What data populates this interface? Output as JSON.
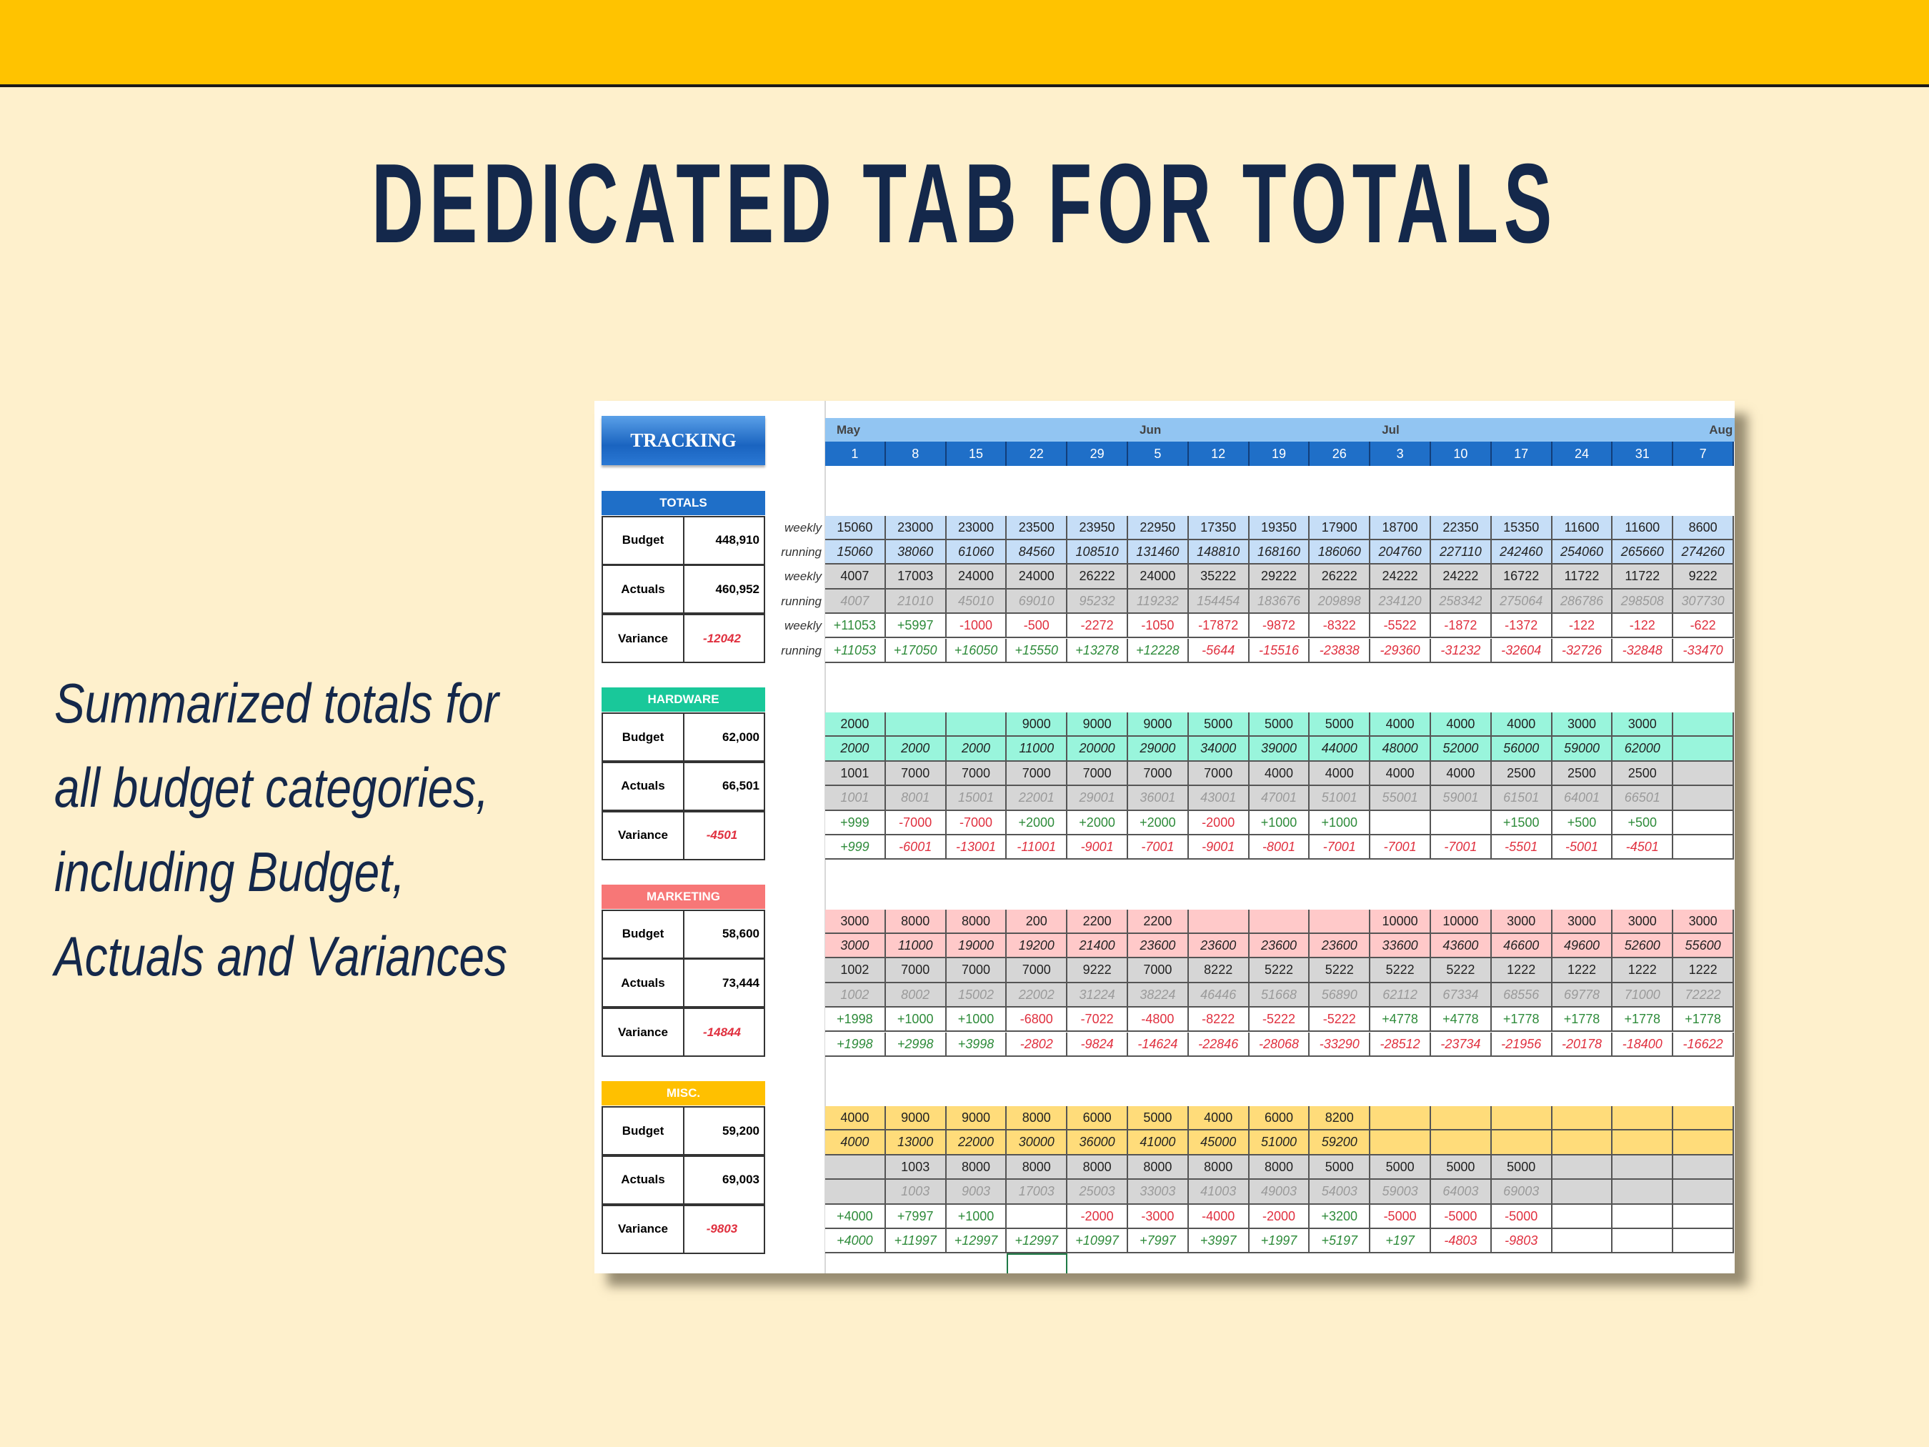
{
  "title": "DEDICATED TAB FOR TOTALS",
  "blurb": [
    "Summarized totals for",
    "all budget categories,",
    "including  Budget,",
    "Actuals and Variances"
  ],
  "sheet": {
    "tracking_button": "TRACKING",
    "months": [
      {
        "label": "May",
        "col": 0
      },
      {
        "label": "Jun",
        "col": 5
      },
      {
        "label": "Jul",
        "col": 9
      },
      {
        "label": "Aug",
        "col": 14
      }
    ],
    "days": [
      "1",
      "8",
      "15",
      "22",
      "29",
      "5",
      "12",
      "19",
      "26",
      "3",
      "10",
      "17",
      "24",
      "31",
      "7"
    ],
    "row_labels": [
      "weekly",
      "running",
      "weekly",
      "running",
      "weekly",
      "running"
    ],
    "summary_labels": {
      "budget": "Budget",
      "actuals": "Actuals",
      "variance": "Variance"
    },
    "colors": {
      "positive": "#2E8B3A",
      "negative": "#E0303F"
    },
    "sections": [
      {
        "name": "TOTALS",
        "header_color": "#1F6FC8",
        "budget_color": "#C6DEF7",
        "actual_color": "#D6D6D6",
        "budget": "448,910",
        "actuals": "460,952",
        "variance": "-12042",
        "rows": [
          [
            "15060",
            "23000",
            "23000",
            "23500",
            "23950",
            "22950",
            "17350",
            "19350",
            "17900",
            "18700",
            "22350",
            "15350",
            "11600",
            "11600",
            "8600"
          ],
          [
            "15060",
            "38060",
            "61060",
            "84560",
            "108510",
            "131460",
            "148810",
            "168160",
            "186060",
            "204760",
            "227110",
            "242460",
            "254060",
            "265660",
            "274260"
          ],
          [
            "4007",
            "17003",
            "24000",
            "24000",
            "26222",
            "24000",
            "35222",
            "29222",
            "26222",
            "24222",
            "24222",
            "16722",
            "11722",
            "11722",
            "9222"
          ],
          [
            "4007",
            "21010",
            "45010",
            "69010",
            "95232",
            "119232",
            "154454",
            "183676",
            "209898",
            "234120",
            "258342",
            "275064",
            "286786",
            "298508",
            "307730"
          ],
          [
            "+11053",
            "+5997",
            "-1000",
            "-500",
            "-2272",
            "-1050",
            "-17872",
            "-9872",
            "-8322",
            "-5522",
            "-1872",
            "-1372",
            "-122",
            "-122",
            "-622"
          ],
          [
            "+11053",
            "+17050",
            "+16050",
            "+15550",
            "+13278",
            "+12228",
            "-5644",
            "-15516",
            "-23838",
            "-29360",
            "-31232",
            "-32604",
            "-32726",
            "-32848",
            "-33470"
          ]
        ]
      },
      {
        "name": "HARDWARE",
        "header_color": "#19C89A",
        "budget_color": "#99F5DC",
        "actual_color": "#D6D6D6",
        "budget": "62,000",
        "actuals": "66,501",
        "variance": "-4501",
        "rows": [
          [
            "2000",
            "",
            "",
            "9000",
            "9000",
            "9000",
            "5000",
            "5000",
            "5000",
            "4000",
            "4000",
            "4000",
            "3000",
            "3000",
            ""
          ],
          [
            "2000",
            "2000",
            "2000",
            "11000",
            "20000",
            "29000",
            "34000",
            "39000",
            "44000",
            "48000",
            "52000",
            "56000",
            "59000",
            "62000",
            ""
          ],
          [
            "1001",
            "7000",
            "7000",
            "7000",
            "7000",
            "7000",
            "7000",
            "4000",
            "4000",
            "4000",
            "4000",
            "2500",
            "2500",
            "2500",
            ""
          ],
          [
            "1001",
            "8001",
            "15001",
            "22001",
            "29001",
            "36001",
            "43001",
            "47001",
            "51001",
            "55001",
            "59001",
            "61501",
            "64001",
            "66501",
            ""
          ],
          [
            "+999",
            "-7000",
            "-7000",
            "+2000",
            "+2000",
            "+2000",
            "-2000",
            "+1000",
            "+1000",
            "",
            "",
            "+1500",
            "+500",
            "+500",
            ""
          ],
          [
            "+999",
            "-6001",
            "-13001",
            "-11001",
            "-9001",
            "-7001",
            "-9001",
            "-8001",
            "-7001",
            "-7001",
            "-7001",
            "-5501",
            "-5001",
            "-4501",
            ""
          ]
        ]
      },
      {
        "name": "MARKETING",
        "header_color": "#F77777",
        "budget_color": "#FFC9C9",
        "actual_color": "#D6D6D6",
        "budget": "58,600",
        "actuals": "73,444",
        "variance": "-14844",
        "rows": [
          [
            "3000",
            "8000",
            "8000",
            "200",
            "2200",
            "2200",
            "",
            "",
            "",
            "10000",
            "10000",
            "3000",
            "3000",
            "3000",
            "3000"
          ],
          [
            "3000",
            "11000",
            "19000",
            "19200",
            "21400",
            "23600",
            "23600",
            "23600",
            "23600",
            "33600",
            "43600",
            "46600",
            "49600",
            "52600",
            "55600"
          ],
          [
            "1002",
            "7000",
            "7000",
            "7000",
            "9222",
            "7000",
            "8222",
            "5222",
            "5222",
            "5222",
            "5222",
            "1222",
            "1222",
            "1222",
            "1222"
          ],
          [
            "1002",
            "8002",
            "15002",
            "22002",
            "31224",
            "38224",
            "46446",
            "51668",
            "56890",
            "62112",
            "67334",
            "68556",
            "69778",
            "71000",
            "72222"
          ],
          [
            "+1998",
            "+1000",
            "+1000",
            "-6800",
            "-7022",
            "-4800",
            "-8222",
            "-5222",
            "-5222",
            "+4778",
            "+4778",
            "+1778",
            "+1778",
            "+1778",
            "+1778"
          ],
          [
            "+1998",
            "+2998",
            "+3998",
            "-2802",
            "-9824",
            "-14624",
            "-22846",
            "-28068",
            "-33290",
            "-28512",
            "-23734",
            "-21956",
            "-20178",
            "-18400",
            "-16622"
          ]
        ]
      },
      {
        "name": "MISC.",
        "header_color": "#FFC000",
        "budget_color": "#FFDC7A",
        "actual_color": "#D6D6D6",
        "budget": "59,200",
        "actuals": "69,003",
        "variance": "-9803",
        "rows": [
          [
            "4000",
            "9000",
            "9000",
            "8000",
            "6000",
            "5000",
            "4000",
            "6000",
            "8200",
            "",
            "",
            "",
            "",
            "",
            ""
          ],
          [
            "4000",
            "13000",
            "22000",
            "30000",
            "36000",
            "41000",
            "45000",
            "51000",
            "59200",
            "",
            "",
            "",
            "",
            "",
            ""
          ],
          [
            "",
            "1003",
            "8000",
            "8000",
            "8000",
            "8000",
            "8000",
            "8000",
            "5000",
            "5000",
            "5000",
            "5000",
            "",
            "",
            ""
          ],
          [
            "",
            "1003",
            "9003",
            "17003",
            "25003",
            "33003",
            "41003",
            "49003",
            "54003",
            "59003",
            "64003",
            "69003",
            "",
            "",
            ""
          ],
          [
            "+4000",
            "+7997",
            "+1000",
            "",
            "-2000",
            "-3000",
            "-4000",
            "-2000",
            "+3200",
            "-5000",
            "-5000",
            "-5000",
            "",
            "",
            ""
          ],
          [
            "+4000",
            "+11997",
            "+12997",
            "+12997",
            "+10997",
            "+7997",
            "+3997",
            "+1997",
            "+5197",
            "+197",
            "-4803",
            "-9803",
            "",
            "",
            ""
          ]
        ]
      }
    ]
  }
}
